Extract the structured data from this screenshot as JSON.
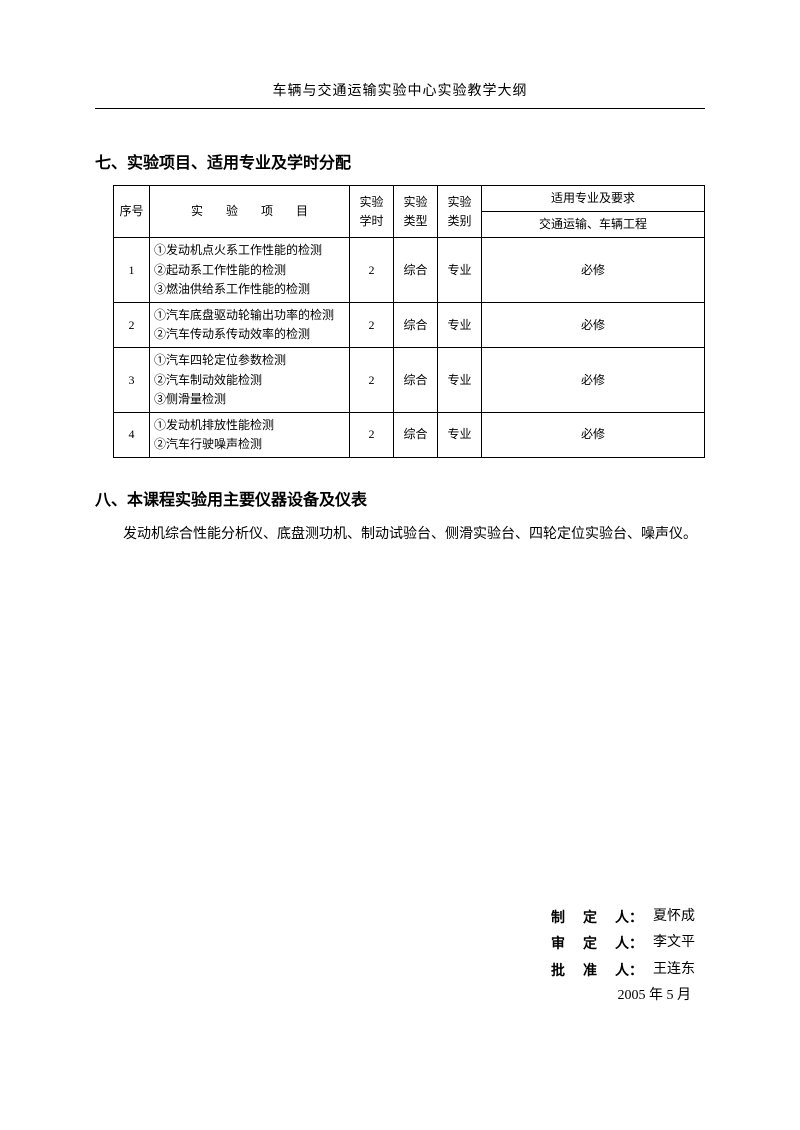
{
  "header": "车辆与交通运输实验中心实验教学大纲",
  "section7": {
    "title": "七、实验项目、适用专业及学时分配",
    "columns": {
      "idx": "序号",
      "project": "实 验 项 目",
      "hours": "实验学时",
      "type": "实验类型",
      "category": "实验类别",
      "req_group": "适用专业及要求",
      "req_sub": "交通运输、车辆工程"
    },
    "rows": [
      {
        "idx": "1",
        "items": [
          "①发动机点火系工作性能的检测",
          "②起动系工作性能的检测",
          "③燃油供给系工作性能的检测"
        ],
        "hours": "2",
        "type": "综合",
        "category": "专业",
        "req": "必修"
      },
      {
        "idx": "2",
        "items": [
          "①汽车底盘驱动轮输出功率的检测",
          "②汽车传动系传动效率的检测"
        ],
        "hours": "2",
        "type": "综合",
        "category": "专业",
        "req": "必修"
      },
      {
        "idx": "3",
        "items": [
          "①汽车四轮定位参数检测",
          "②汽车制动效能检测",
          "③侧滑量检测"
        ],
        "hours": "2",
        "type": "综合",
        "category": "专业",
        "req": "必修"
      },
      {
        "idx": "4",
        "items": [
          "①发动机排放性能检测",
          "②汽车行驶噪声检测"
        ],
        "hours": "2",
        "type": "综合",
        "category": "专业",
        "req": "必修"
      }
    ]
  },
  "section8": {
    "title": "八、本课程实验用主要仪器设备及仪表",
    "body": "发动机综合性能分析仪、底盘测功机、制动试验台、侧滑实验台、四轮定位实验台、噪声仪。"
  },
  "signatures": {
    "lines": [
      {
        "label": "制定人",
        "name": "夏怀成"
      },
      {
        "label": "审定人",
        "name": "李文平"
      },
      {
        "label": "批准人",
        "name": "王连东"
      }
    ],
    "date": "2005 年 5 月"
  }
}
